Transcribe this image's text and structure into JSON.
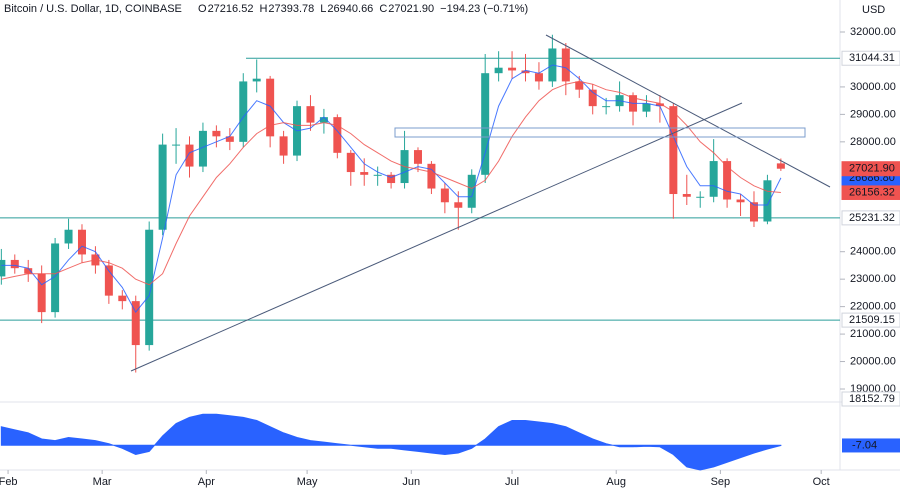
{
  "chart_data": {
    "type": "candlestick",
    "title": "Bitcoin / U.S. Dollar, 1D, COINBASE",
    "ohlc_names": [
      "O",
      "H",
      "L",
      "C"
    ],
    "change": "−194.23 (−0.71%)",
    "currency": "USD",
    "categories": [
      null,
      null,
      null,
      null,
      null,
      null,
      null,
      null,
      null,
      null,
      null,
      null,
      null,
      null,
      null,
      null,
      null,
      null,
      null,
      null,
      null,
      null,
      null,
      null,
      null,
      null,
      null,
      null,
      null,
      null,
      null,
      null,
      null,
      null,
      null,
      null,
      null,
      null,
      null,
      null,
      null,
      null,
      null,
      null,
      null,
      null,
      null,
      null,
      null,
      null,
      null,
      null,
      null,
      null,
      null,
      null,
      null,
      null,
      null
    ],
    "open": [
      23100,
      23700,
      23400,
      23200,
      21800,
      24300,
      24800,
      23900,
      23500,
      22400,
      22200,
      20600,
      24800,
      27900,
      27900,
      27100,
      28400,
      28200,
      28000,
      30200,
      30300,
      28200,
      27500,
      29300,
      28700,
      28900,
      27600,
      26900,
      26800,
      26800,
      26500,
      27700,
      27200,
      26300,
      25800,
      25600,
      26800,
      30500,
      30700,
      30600,
      30500,
      30200,
      31400,
      30200,
      29900,
      29300,
      29300,
      29700,
      29100,
      29400,
      29300,
      26100,
      26000,
      26000,
      27300,
      25900,
      25800,
      25100,
      27216.52
    ],
    "high": [
      24100,
      23900,
      23700,
      23500,
      24500,
      25200,
      25000,
      24200,
      23700,
      22600,
      22400,
      25100,
      28300,
      28500,
      28200,
      28700,
      28600,
      28500,
      30500,
      31000,
      30400,
      28400,
      29500,
      29700,
      29200,
      29000,
      27700,
      27400,
      27100,
      26900,
      28400,
      27800,
      27300,
      26500,
      26200,
      27000,
      31200,
      31300,
      31300,
      31200,
      30900,
      31900,
      31600,
      30400,
      30100,
      29600,
      30200,
      29800,
      29700,
      29700,
      29400,
      26800,
      26200,
      28100,
      27400,
      26100,
      26200,
      26800,
      27393.78
    ],
    "low": [
      22800,
      23200,
      22900,
      21400,
      21600,
      24100,
      23600,
      23200,
      22100,
      21900,
      19600,
      20400,
      24600,
      27200,
      26700,
      26900,
      27800,
      27700,
      27800,
      29800,
      27800,
      27200,
      27300,
      28400,
      28300,
      27400,
      26400,
      26400,
      26400,
      26300,
      26300,
      26900,
      26100,
      25400,
      24800,
      25400,
      26500,
      30200,
      30300,
      30200,
      29900,
      30000,
      29700,
      29600,
      29000,
      29000,
      29100,
      28600,
      28900,
      28700,
      25200,
      25700,
      25600,
      25800,
      25600,
      25300,
      24900,
      25000,
      26940.66
    ],
    "close": [
      23700,
      23400,
      23200,
      21800,
      24300,
      24800,
      23900,
      23500,
      22400,
      22200,
      20600,
      24800,
      27900,
      27900,
      27100,
      28400,
      28200,
      28000,
      30200,
      30300,
      28200,
      27500,
      29300,
      28700,
      28900,
      27600,
      26900,
      26800,
      26800,
      26500,
      27700,
      27200,
      26300,
      25800,
      25600,
      26800,
      30500,
      30700,
      30600,
      30500,
      30200,
      31400,
      30200,
      29900,
      29300,
      29300,
      29700,
      29100,
      29400,
      29300,
      26100,
      26000,
      26000,
      27300,
      25900,
      25800,
      25100,
      26600,
      27021.9
    ],
    "close_last_label": "27021.90",
    "up_color": "#26a69a",
    "down_color": "#ef5350",
    "ma_lines": [
      {
        "color": "#2962ff",
        "last_label": "26686.80",
        "values": [
          23500,
          23500,
          23400,
          22800,
          23100,
          23700,
          24200,
          24000,
          23300,
          22700,
          21800,
          22400,
          24500,
          26800,
          27600,
          27800,
          28000,
          28200,
          28900,
          29500,
          29300,
          28700,
          28400,
          28500,
          28900,
          28400,
          27800,
          27200,
          26900,
          26700,
          26900,
          27100,
          27000,
          26500,
          26000,
          26000,
          27600,
          29300,
          30300,
          30600,
          30500,
          30800,
          30700,
          30300,
          29800,
          29500,
          29500,
          29400,
          29400,
          29300,
          28200,
          27100,
          26400,
          26400,
          26200,
          26100,
          25700,
          25700,
          26686.8
        ]
      },
      {
        "color": "#ef5350",
        "values": [
          23000,
          23100,
          23200,
          23200,
          23200,
          23400,
          23600,
          23700,
          23600,
          23400,
          23000,
          22800,
          23200,
          24300,
          25300,
          26000,
          26700,
          27200,
          27800,
          28300,
          28600,
          28700,
          28600,
          28600,
          28700,
          28600,
          28300,
          27900,
          27600,
          27300,
          27100,
          27000,
          26900,
          26700,
          26500,
          26300,
          26600,
          27300,
          28200,
          28900,
          29500,
          29900,
          30100,
          30200,
          30100,
          29900,
          29800,
          29600,
          29500,
          29400,
          29100,
          28600,
          28000,
          27600,
          27100,
          26700,
          26400,
          26200,
          26156.32
        ]
      }
    ],
    "levels": [
      31044.31,
      25231.32,
      21509.15
    ],
    "level_color": "#2a9d9a",
    "ylim": [
      18600,
      33165
    ],
    "yticks": [
      {
        "value": 19000,
        "label": "19000.00"
      },
      {
        "value": 20000,
        "label": "20000.00"
      },
      {
        "value": 21000,
        "label": "21000.00"
      },
      {
        "value": 22000,
        "label": "22000.00"
      },
      {
        "value": 23000,
        "label": "23000.00"
      },
      {
        "value": 24000,
        "label": "24000.00"
      },
      {
        "value": 28000,
        "label": "28000.00"
      },
      {
        "value": 29000,
        "label": "29000.00"
      },
      {
        "value": 30000,
        "label": "30000.00"
      },
      {
        "value": 32000,
        "label": "32000.00"
      }
    ],
    "xlim": [
      -0.1,
      62.4
    ],
    "xticks": [
      {
        "value": 0.5,
        "label": "Feb"
      },
      {
        "value": 7.5,
        "label": "Mar"
      },
      {
        "value": 15.25,
        "label": "Apr"
      },
      {
        "value": 22.75,
        "label": "May"
      },
      {
        "value": 30.5,
        "label": "Jun"
      },
      {
        "value": 38,
        "label": "Jul"
      },
      {
        "value": 45.75,
        "label": "Aug"
      },
      {
        "value": 53.5,
        "label": "Sep"
      },
      {
        "value": 61,
        "label": "Oct"
      }
    ],
    "oscillator": {
      "color": "#2962ff",
      "ylim": [
        -800,
        1300
      ],
      "top_label": 18152.79,
      "values": [
        600,
        500,
        400,
        200,
        150,
        250,
        200,
        150,
        50,
        -100,
        -300,
        -200,
        300,
        700,
        900,
        1000,
        1000,
        950,
        900,
        800,
        600,
        400,
        250,
        150,
        100,
        50,
        0,
        -50,
        -100,
        -100,
        -150,
        -200,
        -250,
        -300,
        -250,
        -100,
        200,
        600,
        800,
        800,
        750,
        700,
        600,
        400,
        200,
        50,
        -50,
        -50,
        -30,
        -50,
        -300,
        -700,
        -800,
        -700,
        -550,
        -400,
        -250,
        -120,
        -7.04
      ]
    }
  }
}
